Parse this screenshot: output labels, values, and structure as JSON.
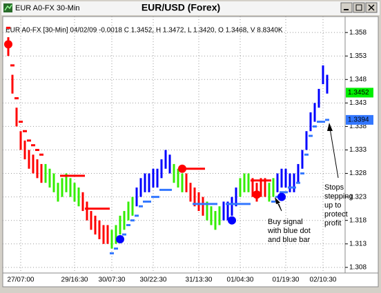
{
  "window_title": "EUR A0-FX 30-Min",
  "chart_data": {
    "type": "bar",
    "title": "EUR/USD (Forex)",
    "subtitle": "EUR A0-FX [30-Min] 04/02/09 -0.0018 C 1.3452, H 1.3472, L 1.3420, O 1.3468, V 8.8340K",
    "categories": [
      null,
      null,
      null,
      "27/07:00",
      null,
      null,
      null,
      null,
      null,
      null,
      null,
      null,
      null,
      null,
      null,
      null,
      "29/16:30",
      null,
      null,
      null,
      null,
      null,
      null,
      null,
      null,
      "30/07:30",
      null,
      null,
      null,
      null,
      null,
      null,
      null,
      null,
      null,
      "30/22:30",
      null,
      null,
      null,
      null,
      null,
      null,
      null,
      null,
      null,
      null,
      "31/13:30",
      null,
      null,
      null,
      null,
      null,
      null,
      null,
      null,
      null,
      "01/04:30",
      null,
      null,
      null,
      null,
      null,
      null,
      null,
      null,
      null,
      null,
      "01/19:30",
      null,
      null,
      null,
      null,
      null,
      null,
      null,
      null,
      "02/10:30",
      null
    ],
    "high": [
      1.357,
      1.349,
      1.342,
      1.337,
      1.335,
      1.333,
      1.332,
      1.331,
      1.33,
      1.33,
      1.329,
      1.328,
      1.326,
      1.327,
      1.328,
      1.327,
      1.326,
      1.325,
      1.324,
      1.322,
      1.32,
      1.319,
      1.318,
      1.317,
      1.317,
      1.316,
      1.317,
      1.319,
      1.32,
      1.322,
      1.323,
      1.325,
      1.327,
      1.328,
      1.328,
      1.329,
      1.329,
      1.331,
      1.333,
      1.332,
      1.33,
      1.329,
      1.328,
      1.328,
      1.326,
      1.325,
      1.324,
      1.323,
      1.322,
      1.321,
      1.32,
      1.321,
      1.322,
      1.322,
      1.323,
      1.325,
      1.327,
      1.328,
      1.328,
      1.327,
      1.326,
      1.327,
      1.327,
      1.326,
      1.327,
      1.328,
      1.329,
      1.329,
      1.328,
      1.328,
      1.33,
      1.333,
      1.337,
      1.341,
      1.343,
      1.346,
      1.351,
      1.349
    ],
    "low": [
      1.353,
      1.345,
      1.338,
      1.333,
      1.331,
      1.329,
      1.328,
      1.327,
      1.326,
      1.326,
      1.325,
      1.324,
      1.322,
      1.323,
      1.324,
      1.323,
      1.322,
      1.321,
      1.32,
      1.318,
      1.316,
      1.315,
      1.314,
      1.313,
      1.313,
      1.312,
      1.313,
      1.315,
      1.316,
      1.318,
      1.319,
      1.321,
      1.323,
      1.324,
      1.324,
      1.325,
      1.325,
      1.327,
      1.329,
      1.328,
      1.326,
      1.325,
      1.324,
      1.324,
      1.322,
      1.321,
      1.32,
      1.319,
      1.318,
      1.317,
      1.316,
      1.317,
      1.318,
      1.318,
      1.319,
      1.321,
      1.323,
      1.324,
      1.324,
      1.323,
      1.322,
      1.323,
      1.323,
      1.322,
      1.323,
      1.324,
      1.325,
      1.325,
      1.324,
      1.324,
      1.326,
      1.329,
      1.333,
      1.337,
      1.339,
      1.342,
      1.347,
      1.345
    ],
    "bar_colors": [
      "#ff0000",
      "#ff0000",
      "#ff0000",
      "#ff0000",
      "#ff0000",
      "#ff0000",
      "#ff0000",
      "#ff0000",
      "#ff0000",
      "#33ee00",
      "#33ee00",
      "#33ee00",
      "#33ee00",
      "#33ee00",
      "#33ee00",
      "#33ee00",
      "#33ee00",
      "#33ee00",
      "#ff0000",
      "#ff0000",
      "#ff0000",
      "#ff0000",
      "#ff0000",
      "#ff0000",
      "#ff0000",
      "#33ee00",
      "#33ee00",
      "#33ee00",
      "#33ee00",
      "#33ee00",
      "#33ee00",
      "#0000ff",
      "#0000ff",
      "#0000ff",
      "#0000ff",
      "#0000ff",
      "#0000ff",
      "#0000ff",
      "#0000ff",
      "#0000ff",
      "#33ee00",
      "#33ee00",
      "#33ee00",
      "#ff0000",
      "#ff0000",
      "#ff0000",
      "#ff0000",
      "#ff0000",
      "#33ee00",
      "#33ee00",
      "#33ee00",
      "#33ee00",
      "#0000ff",
      "#0000ff",
      "#0000ff",
      "#0000ff",
      "#33ee00",
      "#33ee00",
      "#33ee00",
      "#ff0000",
      "#ff0000",
      "#ff0000",
      "#ff0000",
      "#33ee00",
      "#33ee00",
      "#0000ff",
      "#0000ff",
      "#0000ff",
      "#0000ff",
      "#0000ff",
      "#0000ff",
      "#0000ff",
      "#0000ff",
      "#0000ff",
      "#0000ff",
      "#0000ff",
      "#0000ff",
      "#0000ff"
    ],
    "red_stops": [
      1.359,
      1.351,
      1.344,
      1.339,
      1.337,
      1.335,
      1.334,
      1.333,
      1.332,
      null,
      null,
      null,
      null,
      1.3275,
      1.3275,
      1.3275,
      1.3275,
      1.3275,
      1.3275,
      1.3205,
      1.3205,
      1.3205,
      1.3205,
      1.3205,
      1.3205,
      null,
      null,
      null,
      null,
      null,
      null,
      null,
      null,
      null,
      null,
      null,
      null,
      null,
      null,
      null,
      null,
      null,
      null,
      1.329,
      1.329,
      1.329,
      1.329,
      1.329,
      null,
      null,
      null,
      null,
      null,
      null,
      null,
      null,
      null,
      null,
      null,
      1.3265,
      1.3265,
      1.3265,
      1.3265,
      1.3265,
      null,
      null,
      null,
      null,
      null,
      null,
      null,
      null,
      null,
      null,
      null,
      null,
      null,
      null
    ],
    "blue_stops": [
      null,
      null,
      null,
      null,
      null,
      null,
      null,
      null,
      null,
      null,
      null,
      null,
      null,
      null,
      null,
      null,
      null,
      null,
      null,
      null,
      null,
      null,
      null,
      null,
      null,
      1.311,
      1.312,
      1.314,
      1.315,
      1.317,
      1.318,
      1.319,
      1.321,
      1.322,
      1.322,
      1.323,
      1.323,
      1.3245,
      1.3245,
      1.3245,
      null,
      null,
      null,
      null,
      null,
      1.3215,
      1.3215,
      1.3215,
      1.3215,
      1.3215,
      1.3215,
      null,
      null,
      1.3215,
      1.3215,
      1.3215,
      1.3215,
      1.3215,
      1.3215,
      null,
      null,
      null,
      null,
      null,
      1.322,
      1.323,
      1.324,
      1.324,
      1.325,
      1.325,
      1.326,
      1.328,
      1.332,
      1.336,
      1.338,
      1.339,
      1.339,
      1.3394
    ],
    "signal_red": [
      1.3555,
      null,
      null,
      null,
      null,
      null,
      null,
      null,
      null,
      null,
      null,
      null,
      null,
      null,
      null,
      null,
      null,
      null,
      null,
      null,
      null,
      null,
      null,
      null,
      null,
      null,
      null,
      null,
      null,
      null,
      null,
      null,
      null,
      null,
      null,
      null,
      null,
      null,
      null,
      null,
      null,
      null,
      1.329,
      null,
      null,
      null,
      null,
      null,
      null,
      null,
      null,
      null,
      null,
      null,
      null,
      null,
      null,
      null,
      null,
      null,
      1.3235,
      null,
      null,
      null,
      null,
      null,
      null,
      null,
      null,
      null,
      null,
      null,
      null,
      null,
      null,
      null,
      null,
      null
    ],
    "signal_blue": [
      null,
      null,
      null,
      null,
      null,
      null,
      null,
      null,
      null,
      null,
      null,
      null,
      null,
      null,
      null,
      null,
      null,
      null,
      null,
      null,
      null,
      null,
      null,
      null,
      null,
      null,
      null,
      1.314,
      null,
      null,
      null,
      null,
      null,
      null,
      null,
      null,
      null,
      null,
      null,
      null,
      null,
      null,
      null,
      null,
      null,
      null,
      null,
      null,
      null,
      null,
      null,
      null,
      null,
      null,
      1.318,
      null,
      null,
      null,
      null,
      null,
      null,
      null,
      null,
      null,
      null,
      null,
      1.323,
      null,
      null,
      null,
      null,
      null,
      null,
      null,
      null,
      null,
      null,
      null
    ],
    "red_color": "#ff0000",
    "blue_color": "#3377ff",
    "signal_blue_color": "#0000ff",
    "ylim": [
      1.3068,
      1.3614
    ],
    "yticks": [
      1.308,
      1.313,
      1.318,
      1.323,
      1.328,
      1.333,
      1.338,
      1.343,
      1.348,
      1.353,
      1.358
    ],
    "grid": true,
    "price_labels": [
      {
        "value": 1.3452,
        "color": "#00ee00"
      },
      {
        "value": 1.3394,
        "color": "#3377ff"
      }
    ],
    "annotations": [
      [
        "Buy signal",
        "with blue dot",
        "and blue bar"
      ],
      [
        "Stops",
        "stepping",
        "up to",
        "protect",
        "profit"
      ]
    ]
  }
}
